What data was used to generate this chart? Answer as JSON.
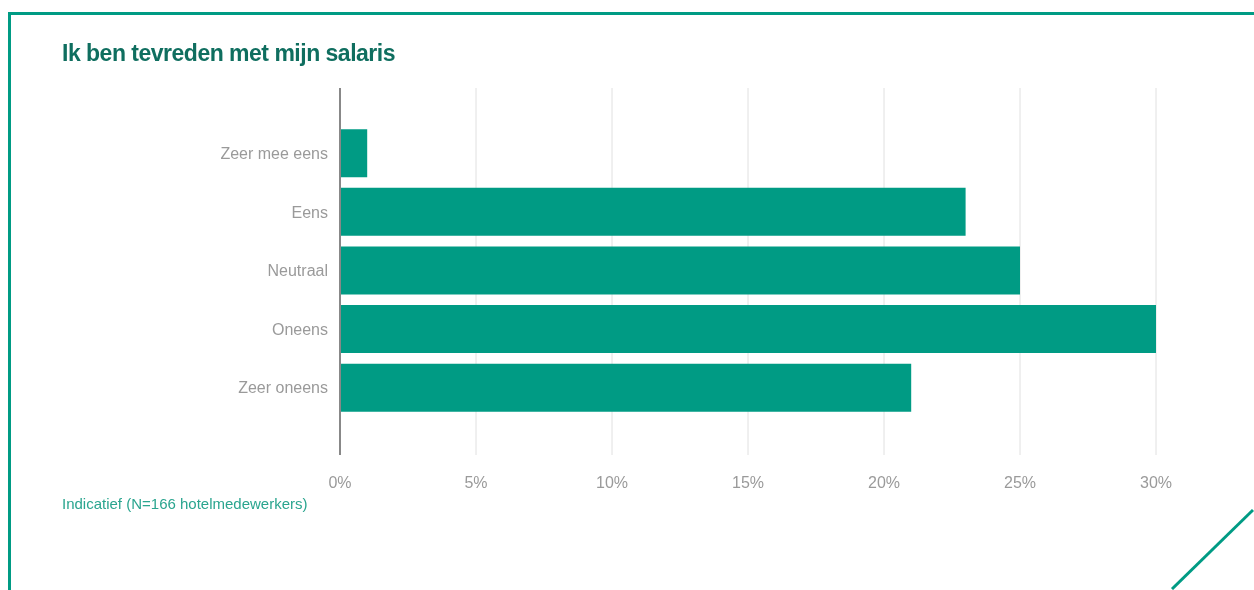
{
  "chart_data": {
    "type": "bar",
    "orientation": "horizontal",
    "title": "Ik ben tevreden met mijn salaris",
    "categories": [
      "Zeer mee eens",
      "Eens",
      "Neutraal",
      "Oneens",
      "Zeer oneens"
    ],
    "values": [
      1,
      23,
      25,
      30,
      21
    ],
    "color": "#009b84",
    "xlim": [
      0,
      30
    ],
    "xticks": [
      {
        "value": 0,
        "label": "0%"
      },
      {
        "value": 5,
        "label": "5%"
      },
      {
        "value": 10,
        "label": "10%"
      },
      {
        "value": 15,
        "label": "15%"
      },
      {
        "value": 20,
        "label": "20%"
      },
      {
        "value": 25,
        "label": "25%"
      },
      {
        "value": 30,
        "label": "30%"
      }
    ],
    "grid": "x",
    "annotations": [
      "Indicatief (N=166 hotelmedewerkers)"
    ]
  }
}
